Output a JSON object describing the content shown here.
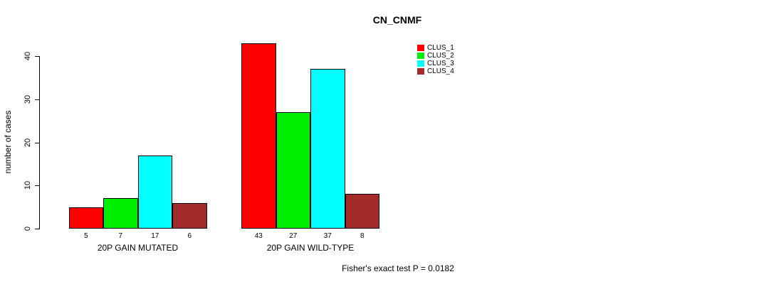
{
  "title": "CN_CNMF",
  "footer": "Fisher's exact test P = 0.0182",
  "chart_data": {
    "type": "bar",
    "title": "CN_CNMF",
    "xlabel": "",
    "ylabel": "number of cases",
    "ylim": [
      0,
      43
    ],
    "yticks": [
      0,
      10,
      20,
      30,
      40
    ],
    "grid": false,
    "legend_position": "top-right",
    "categories": [
      "20P GAIN MUTATED",
      "20P GAIN WILD-TYPE"
    ],
    "series": [
      {
        "name": "CLUS_1",
        "color": "#ff0000",
        "values": [
          5,
          43
        ]
      },
      {
        "name": "CLUS_2",
        "color": "#00ee00",
        "values": [
          7,
          27
        ]
      },
      {
        "name": "CLUS_3",
        "color": "#00ffff",
        "values": [
          17,
          37
        ]
      },
      {
        "name": "CLUS_4",
        "color": "#a52a2a",
        "values": [
          6,
          8
        ]
      }
    ],
    "bar_value_labels": [
      [
        "5",
        "7",
        "17",
        "6"
      ],
      [
        "43",
        "27",
        "37",
        "8"
      ]
    ],
    "annotation": "Fisher's exact test P = 0.0182"
  }
}
